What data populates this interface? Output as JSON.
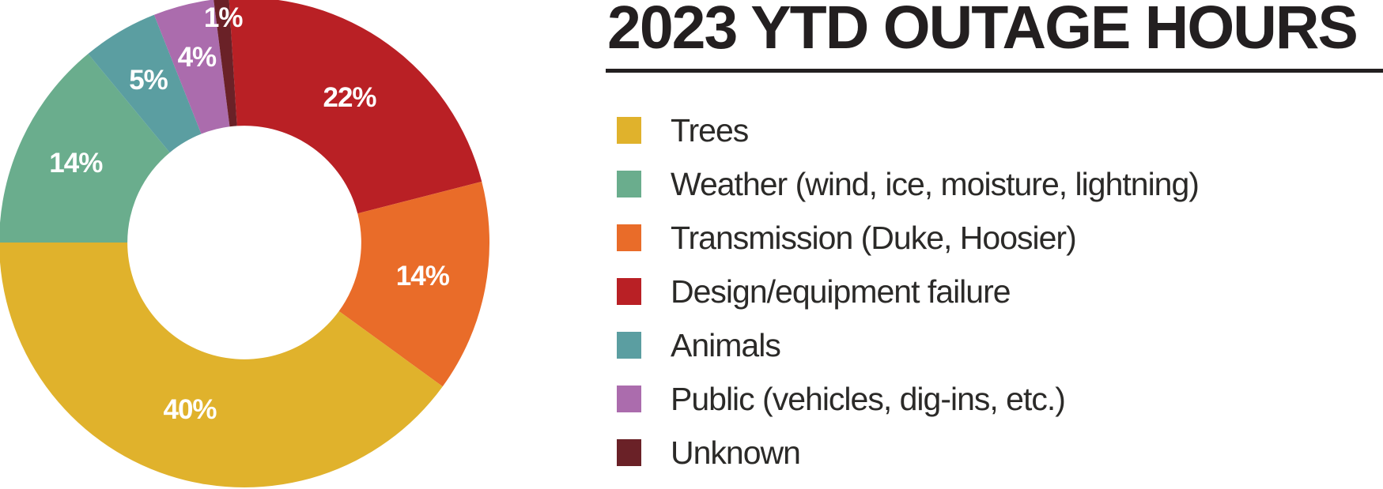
{
  "header": {
    "title": "2023 YTD OUTAGE HOURS",
    "title_color": "#231f20",
    "underline_color": "#231f20"
  },
  "legend": {
    "items": [
      {
        "label": "Trees",
        "color": "#e0b22c"
      },
      {
        "label": "Weather (wind, ice, moisture, lightning)",
        "color": "#6aad8d"
      },
      {
        "label": "Transmission (Duke, Hoosier)",
        "color": "#e96c29"
      },
      {
        "label": "Design/equipment failure",
        "color": "#b92025"
      },
      {
        "label": "Animals",
        "color": "#5b9ea1"
      },
      {
        "label": "Public (vehicles, dig-ins, etc.)",
        "color": "#ab6cad"
      },
      {
        "label": "Unknown",
        "color": "#6a2127"
      }
    ]
  },
  "chart_data": {
    "type": "pie",
    "subtype": "donut",
    "title": "2023 YTD OUTAGE HOURS",
    "legend_position": "right",
    "clockwise": true,
    "start_angle_deg": -3.6,
    "inner_radius_ratio": 0.477,
    "pct_label_color": "#ffffff",
    "slices": [
      {
        "label": "Design/equipment failure",
        "value": 22,
        "pct_label": "22%",
        "color": "#b92025",
        "label_r": 0.73
      },
      {
        "label": "Transmission (Duke, Hoosier)",
        "value": 14,
        "pct_label": "14%",
        "color": "#e96c29",
        "label_r": 0.74
      },
      {
        "label": "Trees",
        "value": 40,
        "pct_label": "40%",
        "color": "#e0b22c",
        "label_r": 0.72
      },
      {
        "label": "Weather (wind, ice, moisture, lightning)",
        "value": 14,
        "pct_label": "14%",
        "color": "#6aad8d",
        "label_r": 0.76
      },
      {
        "label": "Animals",
        "value": 5,
        "pct_label": "5%",
        "color": "#5b9ea1",
        "label_r": 0.77
      },
      {
        "label": "Public (vehicles, dig-ins, etc.)",
        "value": 4,
        "pct_label": "4%",
        "color": "#ab6cad",
        "label_r": 0.78
      },
      {
        "label": "Unknown",
        "value": 1,
        "pct_label": "1%",
        "color": "#6a2127",
        "label_r": 0.92
      }
    ]
  }
}
